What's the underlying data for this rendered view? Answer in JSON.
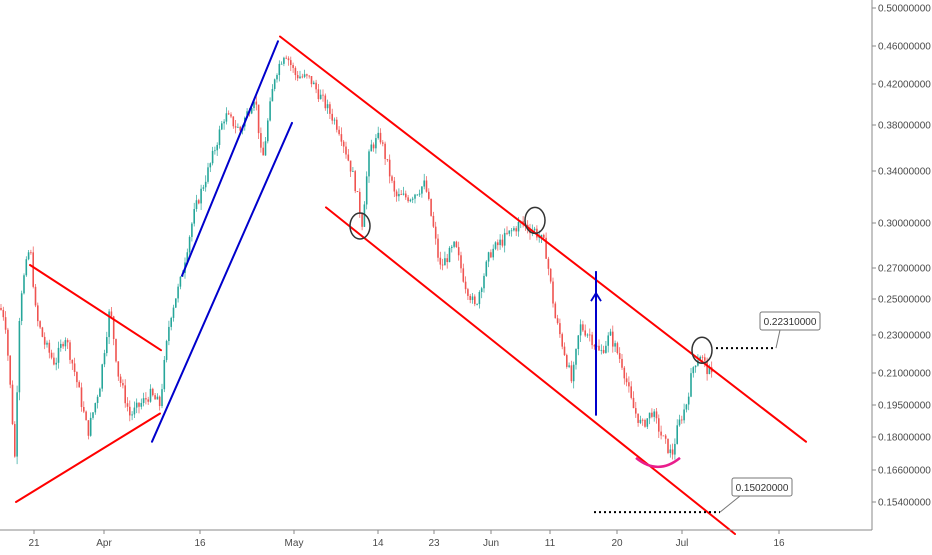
{
  "chart_data": {
    "type": "candlestick",
    "title": "",
    "xlabel": "",
    "ylabel": "",
    "ylim": [
      0.143,
      0.505
    ],
    "x_ticks": [
      "21",
      "Apr",
      "16",
      "May",
      "14",
      "23",
      "Jun",
      "11",
      "20",
      "Jul",
      "16"
    ],
    "y_ticks": [
      "0.50000000",
      "0.46000000",
      "0.42000000",
      "0.38000000",
      "0.34000000",
      "0.30000000",
      "0.27000000",
      "0.25000000",
      "0.23000000",
      "0.21000000",
      "0.19500000",
      "0.18000000",
      "0.16600000",
      "0.15400000"
    ],
    "y_tick_values": [
      0.5,
      0.46,
      0.42,
      0.38,
      0.34,
      0.3,
      0.27,
      0.25,
      0.23,
      0.21,
      0.195,
      0.18,
      0.166,
      0.154
    ],
    "grid": false,
    "colors": {
      "up": "#26a69a",
      "down": "#ef5350",
      "channel": "#ff0000",
      "wedge": "#0000cc",
      "arrow": "#0000cc",
      "bottom_arc": "#e91e8c",
      "level": "#000000"
    },
    "price_anchors": [
      [
        0,
        0.245
      ],
      [
        5,
        0.24
      ],
      [
        15,
        0.17
      ],
      [
        20,
        0.25
      ],
      [
        30,
        0.285
      ],
      [
        36,
        0.24
      ],
      [
        45,
        0.225
      ],
      [
        55,
        0.215
      ],
      [
        65,
        0.23
      ],
      [
        75,
        0.21
      ],
      [
        88,
        0.182
      ],
      [
        100,
        0.205
      ],
      [
        110,
        0.245
      ],
      [
        118,
        0.21
      ],
      [
        130,
        0.19
      ],
      [
        140,
        0.195
      ],
      [
        150,
        0.2
      ],
      [
        160,
        0.195
      ],
      [
        170,
        0.24
      ],
      [
        180,
        0.26
      ],
      [
        195,
        0.31
      ],
      [
        210,
        0.345
      ],
      [
        225,
        0.39
      ],
      [
        240,
        0.375
      ],
      [
        255,
        0.41
      ],
      [
        262,
        0.345
      ],
      [
        275,
        0.43
      ],
      [
        285,
        0.455
      ],
      [
        295,
        0.43
      ],
      [
        310,
        0.425
      ],
      [
        325,
        0.4
      ],
      [
        340,
        0.375
      ],
      [
        355,
        0.33
      ],
      [
        362,
        0.3
      ],
      [
        370,
        0.36
      ],
      [
        380,
        0.37
      ],
      [
        395,
        0.32
      ],
      [
        410,
        0.32
      ],
      [
        425,
        0.33
      ],
      [
        440,
        0.27
      ],
      [
        455,
        0.285
      ],
      [
        465,
        0.26
      ],
      [
        475,
        0.245
      ],
      [
        490,
        0.28
      ],
      [
        505,
        0.29
      ],
      [
        520,
        0.3
      ],
      [
        535,
        0.295
      ],
      [
        545,
        0.285
      ],
      [
        555,
        0.24
      ],
      [
        565,
        0.22
      ],
      [
        572,
        0.205
      ],
      [
        580,
        0.235
      ],
      [
        590,
        0.23
      ],
      [
        600,
        0.22
      ],
      [
        610,
        0.23
      ],
      [
        622,
        0.215
      ],
      [
        632,
        0.195
      ],
      [
        642,
        0.185
      ],
      [
        652,
        0.192
      ],
      [
        662,
        0.18
      ],
      [
        672,
        0.172
      ],
      [
        678,
        0.185
      ],
      [
        686,
        0.195
      ],
      [
        694,
        0.215
      ],
      [
        700,
        0.22
      ],
      [
        707,
        0.212
      ],
      [
        712,
        0.208
      ]
    ],
    "trend_lines": [
      {
        "name": "upper-channel-line",
        "color": "red",
        "points": [
          [
            280,
            0.47
          ],
          [
            806,
            0.178
          ]
        ]
      },
      {
        "name": "lower-channel-line",
        "color": "red",
        "points": [
          [
            326,
            0.312
          ],
          [
            735,
            0.142
          ]
        ]
      },
      {
        "name": "triangle-top-line",
        "color": "red",
        "points": [
          [
            30,
            0.272
          ],
          [
            161,
            0.222
          ]
        ]
      },
      {
        "name": "triangle-bottom-line",
        "color": "red",
        "points": [
          [
            16,
            0.154
          ],
          [
            160,
            0.191
          ]
        ]
      },
      {
        "name": "wedge-upper-line",
        "color": "blue",
        "points": [
          [
            182,
            0.265
          ],
          [
            278,
            0.465
          ]
        ]
      },
      {
        "name": "wedge-lower-line",
        "color": "blue",
        "points": [
          [
            152,
            0.178
          ],
          [
            292,
            0.382
          ]
        ]
      }
    ],
    "annotations": [
      {
        "name": "vertical-arrow",
        "x": 596,
        "from": 0.19,
        "to": 0.268
      },
      {
        "name": "circle-marker-1",
        "x": 360,
        "y": 0.298
      },
      {
        "name": "circle-marker-2",
        "x": 535,
        "y": 0.302
      },
      {
        "name": "circle-marker-3",
        "x": 702,
        "y": 0.222
      },
      {
        "name": "bottom-arc",
        "x_from": 636,
        "x_to": 680,
        "y": 0.172
      }
    ],
    "levels": [
      {
        "name": "resistance-level",
        "value": 0.2231,
        "label": "0.22310000",
        "x_from": 716,
        "x_to": 776
      },
      {
        "name": "support-level",
        "value": 0.1502,
        "label": "0.15020000",
        "x_from": 594,
        "x_to": 720
      }
    ]
  }
}
